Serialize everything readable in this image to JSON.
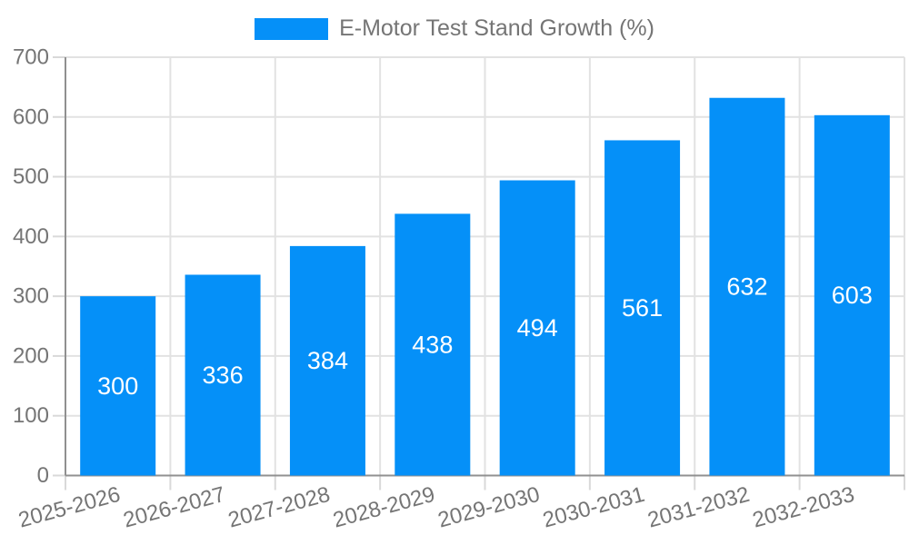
{
  "chart_data": {
    "type": "bar",
    "series_name": "E-Motor Test Stand Growth (%)",
    "categories": [
      "2025-2026",
      "2026-2027",
      "2027-2028",
      "2028-2029",
      "2029-2030",
      "2030-2031",
      "2031-2032",
      "2032-2033"
    ],
    "values": [
      300,
      336,
      384,
      438,
      494,
      561,
      632,
      603
    ],
    "ylim": [
      0,
      700
    ],
    "ytick_step": 100,
    "ytick_labels": [
      "0",
      "100",
      "200",
      "300",
      "400",
      "500",
      "600",
      "700"
    ],
    "legend_position": "top",
    "grid": true,
    "x_label_rotation_deg": -15,
    "bar_color": "#0590f8",
    "bar_label_color": "#ffffff",
    "axis_text_color": "#757575",
    "grid_color": "#e2e2e2",
    "tick_color": "#d9d9d9",
    "axis_line_color": "#909090",
    "background_color": "#ffffff"
  }
}
